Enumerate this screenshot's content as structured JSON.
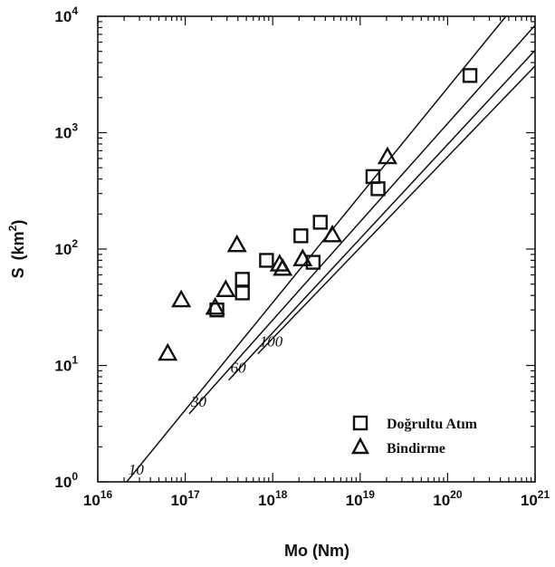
{
  "chart_data": {
    "type": "scatter",
    "title": "",
    "xlabel": "Mo  (Nm)",
    "ylabel_main": "S",
    "ylabel_unit": "(km",
    "ylabel_sup": "2",
    "ylabel_close": ")",
    "xscale": "log",
    "yscale": "log",
    "xlim": [
      1e+16,
      1e+21
    ],
    "ylim": [
      1,
      10000
    ],
    "x_ticks": [
      {
        "base": "10",
        "exp": "16"
      },
      {
        "base": "10",
        "exp": "17"
      },
      {
        "base": "10",
        "exp": "18"
      },
      {
        "base": "10",
        "exp": "19"
      },
      {
        "base": "10",
        "exp": "20"
      },
      {
        "base": "10",
        "exp": "21"
      }
    ],
    "y_ticks": [
      {
        "base": "10",
        "exp": "0"
      },
      {
        "base": "10",
        "exp": "1"
      },
      {
        "base": "10",
        "exp": "2"
      },
      {
        "base": "10",
        "exp": "3"
      },
      {
        "base": "10",
        "exp": "4"
      }
    ],
    "reference_lines": [
      {
        "label": "10",
        "points": [
          [
            2.14e+16,
            1
          ],
          [
            4.64e+20,
            10000
          ]
        ]
      },
      {
        "label": "30",
        "points": [
          [
            1.11e+17,
            3.84
          ],
          [
            1e+21,
            8380
          ]
        ]
      },
      {
        "label": "60",
        "points": [
          [
            3.14e+17,
            7.49
          ],
          [
            1e+21,
            5110
          ]
        ]
      },
      {
        "label": "100",
        "points": [
          [
            6.76e+17,
            12.6
          ],
          [
            1e+21,
            3750
          ]
        ]
      }
    ],
    "legend_position": "bottom-right",
    "series": [
      {
        "name": "Doğrultu Atım",
        "marker": "square",
        "points": [
          [
            2.3e+17,
            30
          ],
          [
            4.5e+17,
            42
          ],
          [
            4.5e+17,
            55
          ],
          [
            8.5e+17,
            80
          ],
          [
            2.1e+18,
            130
          ],
          [
            2.9e+18,
            77
          ],
          [
            3.5e+18,
            170
          ],
          [
            1.4e+19,
            420
          ],
          [
            1.6e+19,
            330
          ],
          [
            1.8e+20,
            3100
          ]
        ]
      },
      {
        "name": "Bindirme",
        "marker": "triangle",
        "points": [
          [
            6.3e+16,
            12.5
          ],
          [
            9e+16,
            36
          ],
          [
            2.2e+17,
            31
          ],
          [
            2.9e+17,
            44
          ],
          [
            3.9e+17,
            107
          ],
          [
            1.2e+18,
            73
          ],
          [
            1.3e+18,
            67
          ],
          [
            2.2e+18,
            81
          ],
          [
            4.8e+18,
            130
          ],
          [
            2.05e+19,
            610
          ]
        ]
      }
    ]
  }
}
